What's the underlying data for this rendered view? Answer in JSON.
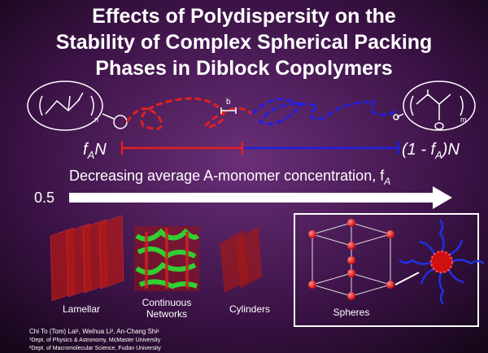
{
  "title_lines": [
    "Effects of Polydispersity on the",
    "Stability of Complex Spherical Packing",
    "Phases in Diblock Copolymers"
  ],
  "left_monomer_subscript": "n",
  "right_monomer_subscript": "m",
  "bond_label": "b",
  "left_label": [
    "f",
    "A",
    "N"
  ],
  "right_label": [
    "(1 - f",
    "A",
    ")N"
  ],
  "arrow_label": [
    "Decreasing average A-monomer concentration, f",
    "A"
  ],
  "arrow_start": "0.5",
  "phases": {
    "lamellar": [
      "Lamellar"
    ],
    "networks": [
      "Continuous",
      "Networks"
    ],
    "cylinders": [
      "Cylinders"
    ],
    "spheres": [
      "Spheres"
    ]
  },
  "authors": [
    "Chi To (Tom) Lai¹, Weihua Li², An-Chang Shi¹",
    "¹Dept. of Physics & Astronomy, McMaster University",
    "²Dept. of Macromolecular Science, Fudan University"
  ]
}
